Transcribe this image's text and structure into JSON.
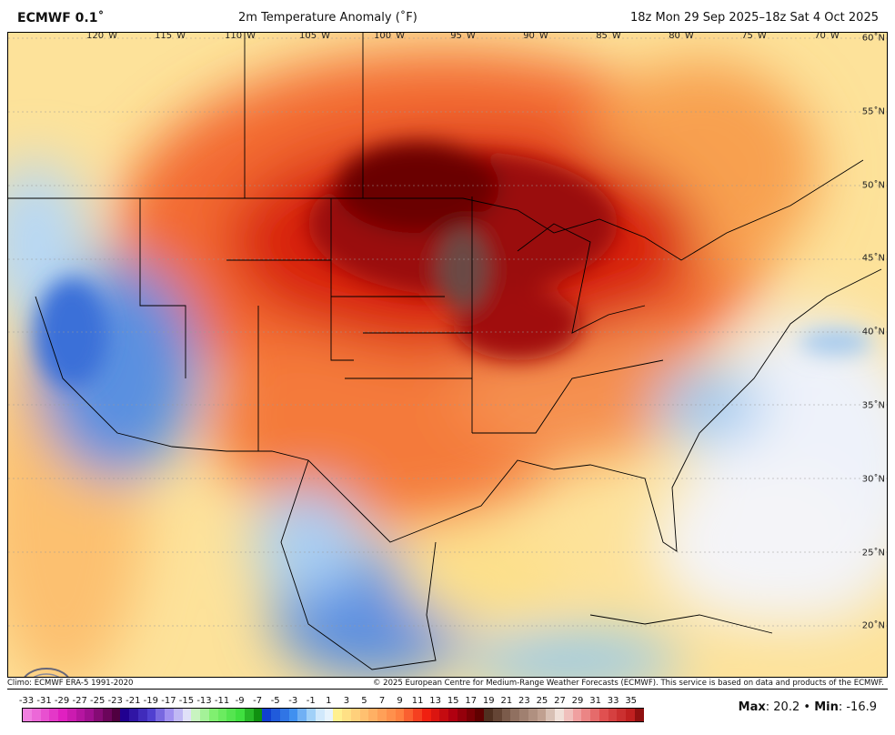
{
  "header": {
    "model": "ECMWF 0.1˚",
    "title": "2m Temperature Anomaly (˚F)",
    "valid": "18z Mon 29 Sep 2025–18z Sat 4 Oct 2025"
  },
  "map": {
    "lon_labels": [
      "120˚W",
      "115˚W",
      "110˚W",
      "105˚W",
      "100˚W",
      "95˚W",
      "90˚W",
      "85˚W",
      "80˚W",
      "75˚W",
      "70˚W"
    ],
    "lat_labels": [
      "60˚N",
      "55˚N",
      "50˚N",
      "45˚N",
      "40˚N",
      "35˚N",
      "30˚N",
      "25˚N",
      "20˚N"
    ],
    "logo": "WEATHERBELL"
  },
  "footer": {
    "climo": "Climo: ECMWF ERA-5 1991-2020",
    "copyright": "© 2025 European Centre for Medium-Range Weather Forecasts (ECMWF). This service is based on data and products of the ECMWF."
  },
  "colorbar": {
    "labels": [
      "-33",
      "-31",
      "-29",
      "-27",
      "-25",
      "-23",
      "-21",
      "-19",
      "-17",
      "-15",
      "-13",
      "-11",
      "-9",
      "-7",
      "-5",
      "-3",
      "-1",
      "1",
      "3",
      "5",
      "7",
      "9",
      "11",
      "13",
      "15",
      "17",
      "19",
      "21",
      "23",
      "25",
      "27",
      "29",
      "31",
      "33",
      "35"
    ],
    "stops": [
      [
        -34,
        "#f080e0"
      ],
      [
        -30,
        "#e020c0"
      ],
      [
        -27,
        "#a01090"
      ],
      [
        -24,
        "#500040"
      ],
      [
        -23,
        "#200090"
      ],
      [
        -20,
        "#5040d0"
      ],
      [
        -18,
        "#a090f0"
      ],
      [
        -16,
        "#e0e0f8"
      ],
      [
        -15,
        "#c8f4c0"
      ],
      [
        -13,
        "#80f070"
      ],
      [
        -10,
        "#40e040"
      ],
      [
        -8,
        "#109010"
      ],
      [
        -7,
        "#1040d0"
      ],
      [
        -4,
        "#4090f0"
      ],
      [
        -2,
        "#a0d0f8"
      ],
      [
        0,
        "#ffffff"
      ],
      [
        1,
        "#fff090"
      ],
      [
        4,
        "#ffc070"
      ],
      [
        8,
        "#ff8040"
      ],
      [
        11,
        "#f02010"
      ],
      [
        14,
        "#b00010"
      ],
      [
        17,
        "#600000"
      ],
      [
        18,
        "#503020"
      ],
      [
        21,
        "#907060"
      ],
      [
        24,
        "#c0a090"
      ],
      [
        26,
        "#f0e0d8"
      ],
      [
        28,
        "#f0a0a0"
      ],
      [
        31,
        "#e05050"
      ],
      [
        34,
        "#c02020"
      ],
      [
        35,
        "#901010"
      ]
    ]
  },
  "stats": {
    "max_label": "Max",
    "max": "20.2",
    "sep": "•",
    "min_label": "Min",
    "min": "-16.9"
  }
}
